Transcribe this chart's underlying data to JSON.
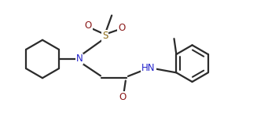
{
  "bg_color": "#ffffff",
  "line_color": "#2b2b2b",
  "N_color": "#2222cc",
  "O_color": "#8b1a1a",
  "S_color": "#8b6914",
  "figsize": [
    3.27,
    1.5
  ],
  "dpi": 100,
  "xlim": [
    0,
    11.5
  ],
  "ylim": [
    0.5,
    5.5
  ],
  "lw": 1.6,
  "fontsize": 8.5
}
